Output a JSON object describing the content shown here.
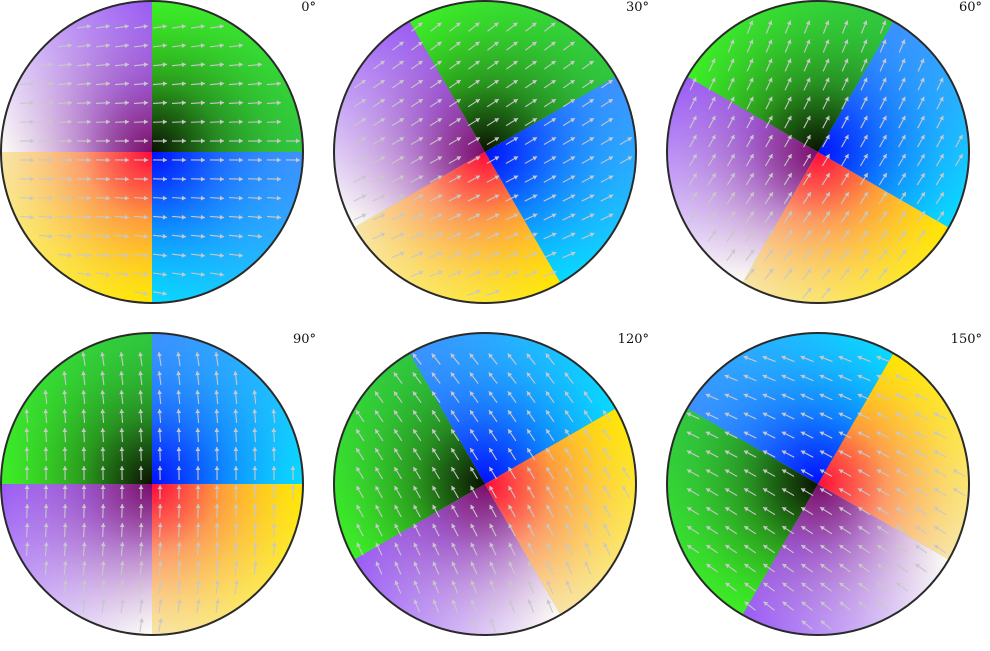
{
  "figure": {
    "panels": [
      {
        "angle": 0,
        "label": "0°"
      },
      {
        "angle": 30,
        "label": "30°"
      },
      {
        "angle": 60,
        "label": "60°"
      },
      {
        "angle": 90,
        "label": "90°"
      },
      {
        "angle": 120,
        "label": "120°"
      },
      {
        "angle": 150,
        "label": "150°"
      }
    ]
  }
}
